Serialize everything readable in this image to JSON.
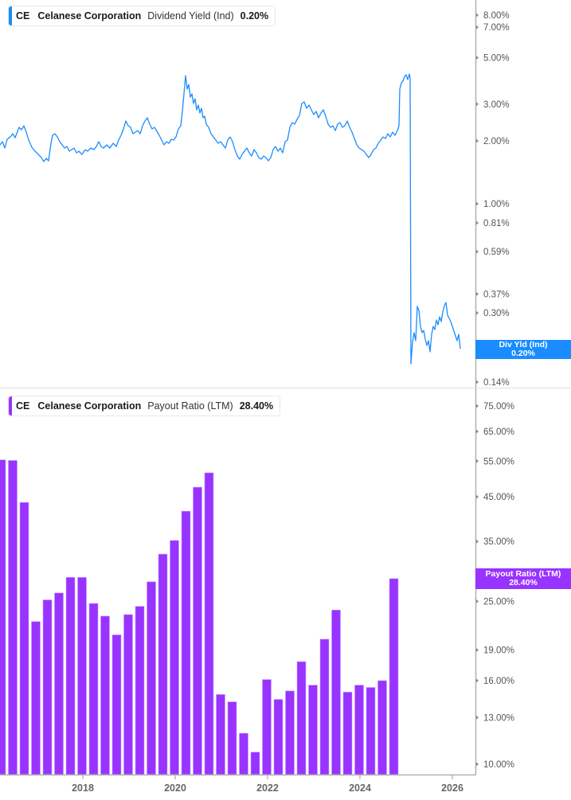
{
  "colors": {
    "dividend_line": "#1a8cff",
    "payout_bar": "#9933ff",
    "axis": "#b0b0b0",
    "tick_text": "#555555"
  },
  "top_panel": {
    "legend": {
      "ticker": "CE",
      "company": "Celanese Corporation",
      "metric": "Dividend Yield (Ind)",
      "value": "0.20%"
    },
    "y_ticks": [
      "8.00%",
      "7.00%",
      "5.00%",
      "3.00%",
      "2.00%",
      "1.00%",
      "0.81%",
      "0.59%",
      "0.37%",
      "0.30%",
      "0.14%"
    ],
    "badge": {
      "label": "Div Yld (Ind)",
      "value": "0.20%"
    }
  },
  "bottom_panel": {
    "legend": {
      "ticker": "CE",
      "company": "Celanese Corporation",
      "metric": "Payout Ratio (LTM)",
      "value": "28.40%"
    },
    "y_ticks": [
      "75.00%",
      "65.00%",
      "55.00%",
      "45.00%",
      "35.00%",
      "25.00%",
      "19.00%",
      "16.00%",
      "13.00%",
      "10.00%"
    ],
    "badge": {
      "label": "Payout Ratio (LTM)",
      "value": "28.40%"
    }
  },
  "x_axis": {
    "ticks": [
      "2018",
      "2020",
      "2022",
      "2024",
      "2026"
    ]
  },
  "chart_data": [
    {
      "type": "line",
      "title": "CE Celanese Corporation Dividend Yield (Ind)",
      "series": [
        {
          "name": "Dividend Yield (Ind)",
          "color": "#1a8cff"
        }
      ],
      "x": [
        "2016-06",
        "2017-01",
        "2017-06",
        "2018-01",
        "2018-06",
        "2019-01",
        "2019-06",
        "2020-01",
        "2020-03",
        "2020-06",
        "2021-01",
        "2021-06",
        "2022-01",
        "2022-06",
        "2022-10",
        "2023-01",
        "2023-06",
        "2024-01",
        "2024-06",
        "2024-10",
        "2024-11",
        "2025-01",
        "2025-06",
        "2025-10",
        "2026-01"
      ],
      "values": [
        1.8,
        2.2,
        1.6,
        1.8,
        1.8,
        1.9,
        2.3,
        1.9,
        4.5,
        3.2,
        2.2,
        1.7,
        1.7,
        2.0,
        3.0,
        2.8,
        2.4,
        1.6,
        2.0,
        4.4,
        0.17,
        0.28,
        0.2,
        0.32,
        0.2
      ],
      "ylabel": "",
      "yscale": "log",
      "ylim": [
        0.13,
        9.0
      ],
      "y_ticks": [
        8.0,
        7.0,
        5.0,
        3.0,
        2.0,
        1.0,
        0.81,
        0.59,
        0.37,
        0.3,
        0.14
      ],
      "current_value": 0.2,
      "legend": "top-left"
    },
    {
      "type": "bar",
      "title": "CE Celanese Corporation Payout Ratio (LTM)",
      "series": [
        {
          "name": "Payout Ratio (LTM)",
          "color": "#9933ff"
        }
      ],
      "categories": [
        "2016Q2",
        "2016Q3",
        "2016Q4",
        "2017Q1",
        "2017Q2",
        "2017Q3",
        "2017Q4",
        "2018Q1",
        "2018Q2",
        "2018Q3",
        "2018Q4",
        "2019Q1",
        "2019Q2",
        "2019Q3",
        "2019Q4",
        "2020Q1",
        "2020Q2",
        "2020Q3",
        "2020Q4",
        "2021Q1",
        "2021Q2",
        "2021Q3",
        "2021Q4",
        "2022Q1",
        "2022Q2",
        "2022Q3",
        "2022Q4",
        "2023Q1",
        "2023Q2",
        "2023Q3",
        "2023Q4",
        "2024Q1",
        "2024Q2",
        "2024Q3",
        "2024Q4"
      ],
      "values": [
        55.4,
        55.2,
        43.6,
        22.3,
        25.2,
        26.2,
        28.6,
        28.6,
        24.7,
        23.0,
        20.7,
        23.2,
        24.3,
        27.9,
        32.6,
        35.2,
        41.5,
        47.5,
        51.5,
        14.8,
        14.2,
        11.9,
        10.7,
        16.1,
        14.4,
        15.1,
        17.8,
        15.6,
        20.2,
        23.8,
        15.0,
        15.6,
        15.4,
        16.0,
        28.4
      ],
      "ylabel": "",
      "yscale": "log",
      "ylim": [
        9.5,
        80
      ],
      "y_ticks": [
        75,
        65,
        55,
        45,
        35,
        25,
        19,
        16,
        13,
        10
      ],
      "current_value": 28.4,
      "legend": "top-left"
    }
  ]
}
